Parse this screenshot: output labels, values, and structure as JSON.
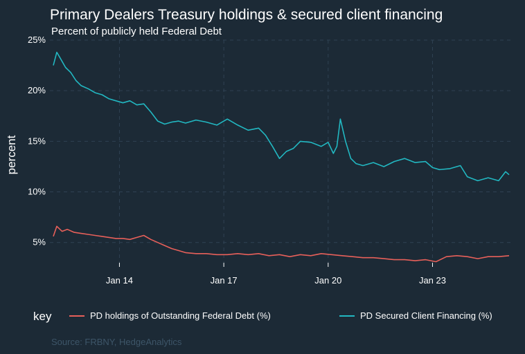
{
  "chart_data": {
    "type": "line",
    "title": "Primary Dealers Treasury holdings & secured client financing",
    "subtitle": "Percent of publicly held Federal Debt",
    "ylabel": "percent",
    "xlabel": "",
    "caption": "Source: FRBNY, HedgeAnalytics",
    "legend_title": "key",
    "legend_position": "bottom",
    "grid": true,
    "xlim": [
      2012.0,
      2025.3
    ],
    "ylim": [
      3.0,
      25.0
    ],
    "y_ticks": [
      {
        "value": 5,
        "label": "5%"
      },
      {
        "value": 10,
        "label": "10%"
      },
      {
        "value": 15,
        "label": "15%"
      },
      {
        "value": 20,
        "label": "20%"
      },
      {
        "value": 25,
        "label": "25%"
      }
    ],
    "x_ticks": [
      {
        "value": 2014.0,
        "label": "Jan 14"
      },
      {
        "value": 2017.0,
        "label": "Jan 17"
      },
      {
        "value": 2020.0,
        "label": "Jan 20"
      },
      {
        "value": 2023.0,
        "label": "Jan 23"
      }
    ],
    "series": [
      {
        "name": "PD holdings of Outstanding Federal Debt (%)",
        "color": "#e8605a",
        "x": [
          2012.1,
          2012.2,
          2012.35,
          2012.5,
          2012.7,
          2012.9,
          2013.1,
          2013.3,
          2013.5,
          2013.7,
          2013.9,
          2014.1,
          2014.3,
          2014.5,
          2014.7,
          2014.9,
          2015.1,
          2015.3,
          2015.5,
          2015.7,
          2015.9,
          2016.2,
          2016.5,
          2016.8,
          2017.1,
          2017.4,
          2017.7,
          2018.0,
          2018.3,
          2018.6,
          2018.9,
          2019.2,
          2019.5,
          2019.8,
          2020.1,
          2020.4,
          2020.7,
          2021.0,
          2021.3,
          2021.6,
          2021.9,
          2022.2,
          2022.5,
          2022.8,
          2023.1,
          2023.4,
          2023.7,
          2024.0,
          2024.3,
          2024.6,
          2024.9,
          2025.2
        ],
        "y": [
          5.6,
          6.6,
          6.1,
          6.3,
          6.0,
          5.9,
          5.8,
          5.7,
          5.6,
          5.5,
          5.4,
          5.4,
          5.3,
          5.5,
          5.7,
          5.3,
          5.0,
          4.7,
          4.4,
          4.2,
          4.0,
          3.9,
          3.9,
          3.8,
          3.8,
          3.9,
          3.8,
          3.9,
          3.7,
          3.8,
          3.6,
          3.8,
          3.7,
          3.9,
          3.8,
          3.7,
          3.6,
          3.5,
          3.5,
          3.4,
          3.3,
          3.3,
          3.2,
          3.3,
          3.1,
          3.6,
          3.7,
          3.6,
          3.4,
          3.6,
          3.6,
          3.7
        ]
      },
      {
        "name": "PD Secured Client Financing (%)",
        "color": "#22b8c2",
        "x": [
          2012.1,
          2012.2,
          2012.3,
          2012.45,
          2012.6,
          2012.75,
          2012.9,
          2013.1,
          2013.3,
          2013.5,
          2013.7,
          2013.9,
          2014.1,
          2014.3,
          2014.5,
          2014.7,
          2014.9,
          2015.1,
          2015.3,
          2015.5,
          2015.7,
          2015.9,
          2016.2,
          2016.5,
          2016.8,
          2017.1,
          2017.4,
          2017.7,
          2018.0,
          2018.2,
          2018.4,
          2018.6,
          2018.8,
          2019.0,
          2019.2,
          2019.5,
          2019.8,
          2020.0,
          2020.15,
          2020.25,
          2020.35,
          2020.5,
          2020.65,
          2020.8,
          2021.0,
          2021.3,
          2021.6,
          2021.9,
          2022.2,
          2022.5,
          2022.8,
          2023.0,
          2023.2,
          2023.5,
          2023.8,
          2024.0,
          2024.3,
          2024.6,
          2024.9,
          2025.1,
          2025.2
        ],
        "y": [
          22.5,
          23.8,
          23.2,
          22.3,
          21.8,
          21.0,
          20.5,
          20.2,
          19.8,
          19.6,
          19.2,
          19.0,
          18.8,
          19.0,
          18.6,
          18.7,
          17.9,
          17.0,
          16.7,
          16.9,
          17.0,
          16.8,
          17.1,
          16.9,
          16.6,
          17.2,
          16.6,
          16.1,
          16.3,
          15.6,
          14.5,
          13.3,
          14.0,
          14.3,
          15.0,
          14.9,
          14.5,
          14.9,
          13.8,
          14.5,
          17.2,
          15.0,
          13.3,
          12.8,
          12.6,
          12.9,
          12.5,
          13.0,
          13.3,
          12.9,
          13.0,
          12.4,
          12.2,
          12.3,
          12.6,
          11.5,
          11.1,
          11.4,
          11.1,
          12.0,
          11.7
        ]
      }
    ]
  }
}
